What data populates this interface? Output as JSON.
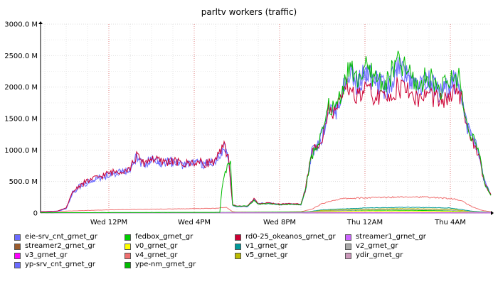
{
  "chart_data": {
    "type": "line",
    "title": "parltv workers (traffic)",
    "xlabel": "",
    "ylabel": "",
    "ylim": [
      0,
      3000
    ],
    "y_unit_suffix": " M",
    "y_ticks": [
      {
        "value": 0,
        "label": "0"
      },
      {
        "value": 500,
        "label": "500.0 M"
      },
      {
        "value": 1000,
        "label": "1000.0 M"
      },
      {
        "value": 1500,
        "label": "1500.0 M"
      },
      {
        "value": 2000,
        "label": "2000.0 M"
      },
      {
        "value": 2500,
        "label": "2500.0 M"
      },
      {
        "value": 3000,
        "label": "3000.0 M"
      }
    ],
    "x_range_hours": [
      8.8,
      29.9
    ],
    "x_ticks": [
      {
        "hour": 12,
        "label": "Wed 12PM"
      },
      {
        "hour": 16,
        "label": "Wed  4PM"
      },
      {
        "hour": 20,
        "label": "Wed  8PM"
      },
      {
        "hour": 24,
        "label": "Thu 12AM"
      },
      {
        "hour": 28,
        "label": "Thu  4AM"
      }
    ],
    "grid": true,
    "legend_placement": "bottom",
    "series": [
      {
        "name": "eie-srv_cnt_grnet_gr",
        "color": "#6b6bff",
        "points": [
          [
            8.8,
            20
          ],
          [
            9.6,
            30
          ],
          [
            10,
            80
          ],
          [
            10.3,
            320
          ],
          [
            10.6,
            420
          ],
          [
            11,
            500
          ],
          [
            11.5,
            560
          ],
          [
            12,
            620
          ],
          [
            12.5,
            660
          ],
          [
            13,
            700
          ],
          [
            13.3,
            900
          ],
          [
            13.6,
            780
          ],
          [
            14,
            860
          ],
          [
            14.5,
            800
          ],
          [
            15,
            820
          ],
          [
            15.5,
            760
          ],
          [
            16,
            800
          ],
          [
            16.5,
            780
          ],
          [
            17,
            820
          ],
          [
            17.4,
            1050
          ],
          [
            17.6,
            900
          ],
          [
            17.8,
            130
          ],
          [
            18,
            110
          ],
          [
            18.5,
            110
          ],
          [
            18.8,
            220
          ],
          [
            19,
            150
          ],
          [
            19.5,
            160
          ],
          [
            20,
            140
          ],
          [
            20.5,
            150
          ],
          [
            21,
            140
          ],
          [
            21.2,
            360
          ],
          [
            21.5,
            950
          ],
          [
            22,
            1250
          ],
          [
            22.3,
            1700
          ],
          [
            22.6,
            1600
          ],
          [
            23,
            2000
          ],
          [
            23.3,
            2300
          ],
          [
            23.6,
            2050
          ],
          [
            24,
            2250
          ],
          [
            24.5,
            2100
          ],
          [
            25,
            2000
          ],
          [
            25.5,
            2300
          ],
          [
            26,
            2200
          ],
          [
            26.5,
            2000
          ],
          [
            27,
            2150
          ],
          [
            27.5,
            1900
          ],
          [
            28,
            2050
          ],
          [
            28.4,
            2150
          ],
          [
            28.7,
            1500
          ],
          [
            29,
            1250
          ],
          [
            29.3,
            1000
          ],
          [
            29.6,
            500
          ],
          [
            29.9,
            300
          ]
        ]
      },
      {
        "name": "streamer2_grnet_gr",
        "color": "#9b5b2c",
        "points": [
          [
            8.8,
            5
          ],
          [
            18,
            6
          ],
          [
            21,
            8
          ],
          [
            29.9,
            6
          ]
        ]
      },
      {
        "name": "v3_grnet_gr",
        "color": "#ff00ff",
        "points": [
          [
            8.8,
            4
          ],
          [
            29.9,
            4
          ]
        ]
      },
      {
        "name": "yp-srv_cnt_grnet_gr",
        "color": "#6b6bff",
        "points": [
          [
            8.8,
            15
          ],
          [
            9.6,
            25
          ],
          [
            10,
            70
          ],
          [
            10.3,
            300
          ],
          [
            10.6,
            400
          ],
          [
            11,
            480
          ],
          [
            11.5,
            540
          ],
          [
            12,
            600
          ],
          [
            12.5,
            650
          ],
          [
            13,
            690
          ],
          [
            13.3,
            880
          ],
          [
            13.6,
            760
          ],
          [
            14,
            840
          ],
          [
            14.5,
            790
          ],
          [
            15,
            800
          ],
          [
            15.5,
            750
          ],
          [
            16,
            790
          ],
          [
            16.5,
            770
          ],
          [
            17,
            800
          ],
          [
            17.4,
            1030
          ],
          [
            17.6,
            880
          ],
          [
            17.8,
            120
          ],
          [
            18,
            100
          ],
          [
            18.5,
            100
          ],
          [
            18.8,
            210
          ],
          [
            19,
            140
          ],
          [
            19.5,
            150
          ],
          [
            20,
            130
          ],
          [
            20.5,
            140
          ],
          [
            21,
            130
          ],
          [
            21.2,
            340
          ],
          [
            21.5,
            920
          ],
          [
            22,
            1200
          ],
          [
            22.3,
            1680
          ],
          [
            22.6,
            1580
          ],
          [
            23,
            1980
          ],
          [
            23.3,
            2250
          ],
          [
            23.6,
            2000
          ],
          [
            24,
            2200
          ],
          [
            24.5,
            2050
          ],
          [
            25,
            1950
          ],
          [
            25.5,
            2250
          ],
          [
            26,
            2150
          ],
          [
            26.5,
            1950
          ],
          [
            27,
            2100
          ],
          [
            27.5,
            1850
          ],
          [
            28,
            2000
          ],
          [
            28.4,
            2100
          ],
          [
            28.7,
            1450
          ],
          [
            29,
            1200
          ],
          [
            29.3,
            980
          ],
          [
            29.6,
            480
          ],
          [
            29.9,
            290
          ]
        ]
      },
      {
        "name": "fedbox_grnet_gr",
        "color": "#00cc00",
        "points": [
          [
            8.8,
            5
          ],
          [
            16,
            8
          ],
          [
            17.5,
            10
          ],
          [
            18,
            10
          ],
          [
            21,
            15
          ],
          [
            22,
            30
          ],
          [
            23,
            40
          ],
          [
            25,
            45
          ],
          [
            27,
            40
          ],
          [
            28,
            30
          ],
          [
            29,
            15
          ],
          [
            29.9,
            10
          ]
        ]
      },
      {
        "name": "v0_grnet_gr",
        "color": "#ffff00",
        "points": [
          [
            8.8,
            3
          ],
          [
            21,
            3
          ],
          [
            22,
            20
          ],
          [
            24,
            30
          ],
          [
            26,
            30
          ],
          [
            28,
            25
          ],
          [
            29,
            10
          ],
          [
            29.9,
            5
          ]
        ]
      },
      {
        "name": "v4_grnet_gr",
        "color": "#f07070",
        "points": [
          [
            8.8,
            20
          ],
          [
            10,
            30
          ],
          [
            11,
            40
          ],
          [
            12,
            50
          ],
          [
            13,
            55
          ],
          [
            14,
            60
          ],
          [
            15,
            65
          ],
          [
            16,
            70
          ],
          [
            17,
            75
          ],
          [
            17.5,
            90
          ],
          [
            17.8,
            20
          ],
          [
            18,
            15
          ],
          [
            20,
            15
          ],
          [
            21,
            20
          ],
          [
            21.5,
            60
          ],
          [
            22,
            150
          ],
          [
            22.5,
            200
          ],
          [
            23,
            230
          ],
          [
            24,
            240
          ],
          [
            25,
            250
          ],
          [
            26,
            260
          ],
          [
            27,
            250
          ],
          [
            28,
            230
          ],
          [
            28.5,
            200
          ],
          [
            29,
            100
          ],
          [
            29.5,
            40
          ],
          [
            29.9,
            20
          ]
        ]
      },
      {
        "name": "ype-nm_grnet_gr",
        "color": "#00bb00",
        "points": [
          [
            8.8,
            5
          ],
          [
            16,
            8
          ],
          [
            17.2,
            10
          ],
          [
            17.3,
            400
          ],
          [
            17.5,
            700
          ],
          [
            17.7,
            800
          ],
          [
            17.8,
            120
          ],
          [
            18,
            110
          ],
          [
            18.5,
            110
          ],
          [
            18.8,
            200
          ],
          [
            19,
            140
          ],
          [
            19.5,
            150
          ],
          [
            20,
            130
          ],
          [
            20.5,
            140
          ],
          [
            21,
            130
          ],
          [
            21.2,
            350
          ],
          [
            21.5,
            900
          ],
          [
            22,
            1250
          ],
          [
            22.3,
            1700
          ],
          [
            22.6,
            1650
          ],
          [
            23,
            2050
          ],
          [
            23.3,
            2350
          ],
          [
            23.6,
            2100
          ],
          [
            24,
            2300
          ],
          [
            24.5,
            2150
          ],
          [
            25,
            2050
          ],
          [
            25.5,
            2400
          ],
          [
            26,
            2250
          ],
          [
            26.5,
            2000
          ],
          [
            27,
            2200
          ],
          [
            27.5,
            1950
          ],
          [
            28,
            2100
          ],
          [
            28.4,
            2200
          ],
          [
            28.7,
            1500
          ],
          [
            29,
            1250
          ],
          [
            29.3,
            1000
          ],
          [
            29.6,
            480
          ],
          [
            29.9,
            280
          ]
        ]
      },
      {
        "name": "rd0-25_okeanos_grnet_gr",
        "color": "#cc0033",
        "points": [
          [
            8.8,
            20
          ],
          [
            9.6,
            30
          ],
          [
            10,
            80
          ],
          [
            10.3,
            330
          ],
          [
            10.6,
            430
          ],
          [
            11,
            510
          ],
          [
            11.5,
            570
          ],
          [
            12,
            630
          ],
          [
            12.5,
            670
          ],
          [
            13,
            710
          ],
          [
            13.3,
            910
          ],
          [
            13.6,
            790
          ],
          [
            14,
            870
          ],
          [
            14.5,
            810
          ],
          [
            15,
            830
          ],
          [
            15.5,
            770
          ],
          [
            16,
            810
          ],
          [
            16.5,
            790
          ],
          [
            17,
            830
          ],
          [
            17.4,
            1060
          ],
          [
            17.6,
            910
          ],
          [
            17.8,
            130
          ],
          [
            18,
            110
          ],
          [
            18.5,
            110
          ],
          [
            18.8,
            230
          ],
          [
            19,
            150
          ],
          [
            19.5,
            160
          ],
          [
            20,
            140
          ],
          [
            20.5,
            150
          ],
          [
            21,
            140
          ],
          [
            21.2,
            360
          ],
          [
            21.5,
            940
          ],
          [
            22,
            1230
          ],
          [
            22.3,
            1650
          ],
          [
            22.6,
            1550
          ],
          [
            23,
            1900
          ],
          [
            23.3,
            2050
          ],
          [
            23.6,
            1800
          ],
          [
            24,
            1950
          ],
          [
            24.5,
            1850
          ],
          [
            25,
            1800
          ],
          [
            25.5,
            2000
          ],
          [
            26,
            1950
          ],
          [
            26.5,
            1800
          ],
          [
            27,
            1900
          ],
          [
            27.5,
            1750
          ],
          [
            28,
            1850
          ],
          [
            28.4,
            1950
          ],
          [
            28.7,
            1450
          ],
          [
            29,
            1200
          ],
          [
            29.3,
            950
          ],
          [
            29.6,
            460
          ],
          [
            29.9,
            280
          ]
        ]
      },
      {
        "name": "v1_grnet_gr",
        "color": "#009999",
        "points": [
          [
            8.8,
            3
          ],
          [
            21,
            3
          ],
          [
            22,
            50
          ],
          [
            24,
            80
          ],
          [
            26,
            90
          ],
          [
            28,
            80
          ],
          [
            29,
            30
          ],
          [
            29.9,
            10
          ]
        ]
      },
      {
        "name": "v5_grnet_gr",
        "color": "#bbbb00",
        "points": [
          [
            8.8,
            3
          ],
          [
            21,
            3
          ],
          [
            22,
            40
          ],
          [
            24,
            60
          ],
          [
            26,
            70
          ],
          [
            28,
            60
          ],
          [
            29,
            20
          ],
          [
            29.9,
            8
          ]
        ]
      },
      {
        "name": "streamer1_grnet_gr",
        "color": "#cc66ff",
        "points": [
          [
            8.8,
            3
          ],
          [
            29.9,
            3
          ]
        ]
      },
      {
        "name": "v2_grnet_gr",
        "color": "#aaaaaa",
        "points": [
          [
            8.8,
            3
          ],
          [
            21,
            3
          ],
          [
            22,
            30
          ],
          [
            24,
            50
          ],
          [
            26,
            55
          ],
          [
            28,
            45
          ],
          [
            29,
            15
          ],
          [
            29.9,
            6
          ]
        ]
      },
      {
        "name": "ydir_grnet_gr",
        "color": "#cc99bb",
        "points": [
          [
            8.8,
            2
          ],
          [
            29.9,
            2
          ]
        ]
      }
    ]
  }
}
